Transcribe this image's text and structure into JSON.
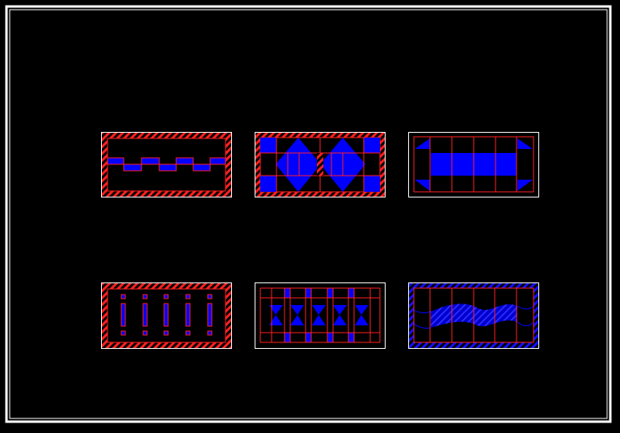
{
  "colors": {
    "background": "#000000",
    "frame": "#ffffff",
    "hatch": "#ff2020",
    "fill": "#0000ff",
    "line": "#ff0000"
  },
  "panels": [
    {
      "name": "square-wave-tile"
    },
    {
      "name": "diamond-tile"
    },
    {
      "name": "band-tile"
    },
    {
      "name": "bar-row-tile"
    },
    {
      "name": "bowtie-tile"
    },
    {
      "name": "wave-tile"
    }
  ]
}
